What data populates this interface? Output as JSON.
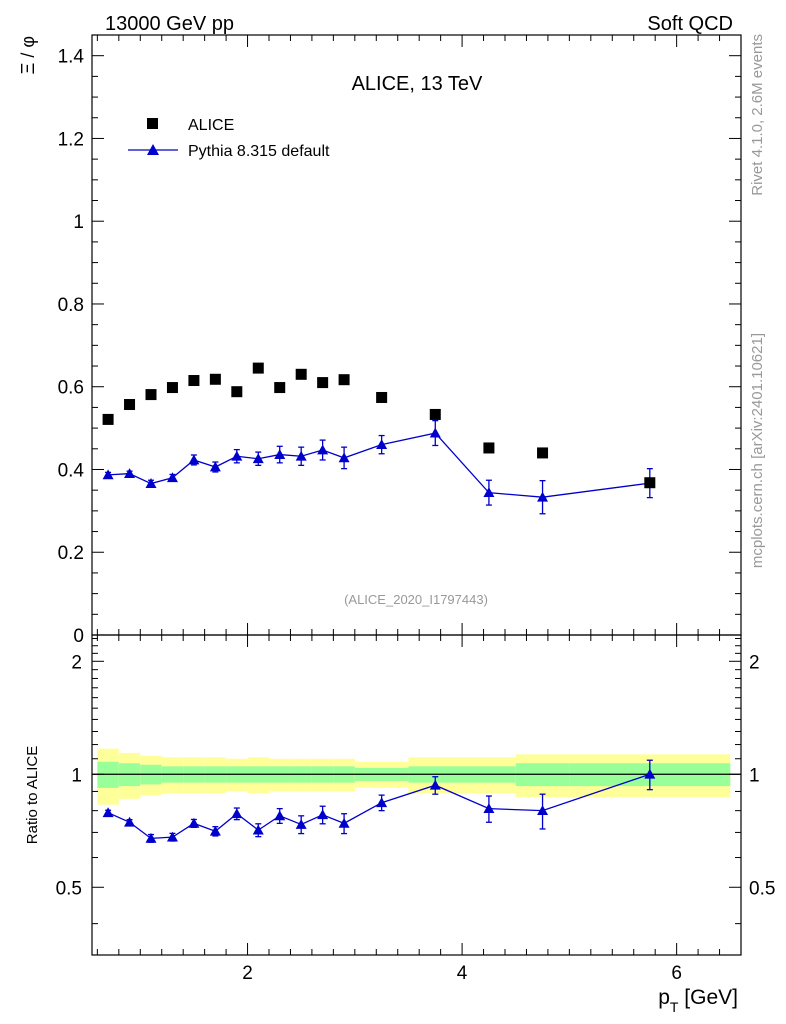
{
  "header": {
    "left_label": "13000 GeV pp",
    "right_label": "Soft QCD"
  },
  "side_labels": {
    "top": "Rivet 4.1.0,  2.6M events",
    "bottom": "mcplots.cern.ch [arXiv:2401.10621]"
  },
  "colors": {
    "data": "#000000",
    "mc": "#0000cc",
    "band_inner": "#99ff99",
    "band_outer": "#ffff99",
    "watermark": "#999999"
  },
  "chart_data": [
    {
      "type": "scatter",
      "title": "ALICE, 13 TeV",
      "ylabel": "Ξ / φ",
      "xlabel": "",
      "xlim": [
        0.55,
        6.6
      ],
      "ylim": [
        0,
        1.45
      ],
      "y_ticks": [
        0,
        0.2,
        0.4,
        0.6,
        0.8,
        1,
        1.2,
        1.4
      ],
      "y_tick_labels": [
        "0",
        "0.2",
        "0.4",
        "0.6",
        "0.8",
        "1",
        "1.2",
        "1.4"
      ],
      "x_ticks": [
        2,
        4,
        6
      ],
      "watermark": "(ALICE_2020_I1797443)",
      "legend": {
        "position": "top-left",
        "entries": [
          {
            "name": "ALICE",
            "marker": "square"
          },
          {
            "name": "Pythia 8.315 default",
            "marker": "triangle-line"
          }
        ]
      },
      "series": [
        {
          "name": "ALICE",
          "x": [
            0.7,
            0.9,
            1.1,
            1.3,
            1.5,
            1.7,
            1.9,
            2.1,
            2.3,
            2.5,
            2.7,
            2.9,
            3.25,
            3.75,
            4.25,
            4.75,
            5.75
          ],
          "y": [
            0.521,
            0.557,
            0.581,
            0.598,
            0.615,
            0.618,
            0.588,
            0.645,
            0.598,
            0.63,
            0.61,
            0.617,
            0.574,
            0.533,
            0.452,
            0.44,
            0.368
          ]
        },
        {
          "name": "Pythia 8.315 default",
          "x": [
            0.7,
            0.9,
            1.1,
            1.3,
            1.5,
            1.7,
            1.9,
            2.1,
            2.3,
            2.5,
            2.7,
            2.9,
            3.25,
            3.75,
            4.25,
            4.75,
            5.75
          ],
          "y": [
            0.387,
            0.39,
            0.366,
            0.38,
            0.423,
            0.406,
            0.432,
            0.426,
            0.436,
            0.432,
            0.447,
            0.428,
            0.46,
            0.488,
            0.344,
            0.333,
            0.367
          ],
          "yerr": [
            0.006,
            0.006,
            0.008,
            0.008,
            0.012,
            0.012,
            0.016,
            0.016,
            0.02,
            0.022,
            0.024,
            0.026,
            0.022,
            0.03,
            0.03,
            0.04,
            0.035
          ]
        }
      ]
    },
    {
      "type": "line",
      "title": "",
      "ylabel": "Ratio to ALICE",
      "xlabel": "p_T [GeV]",
      "xlim": [
        0.55,
        6.6
      ],
      "ylim": [
        0.33,
        2.35
      ],
      "y_ticks": [
        0.5,
        1,
        2
      ],
      "y_tick_labels": [
        "0.5",
        "1",
        "2"
      ],
      "x_ticks": [
        2,
        4,
        6
      ],
      "x_tick_labels": [
        "2",
        "4",
        "6"
      ],
      "reference_line": 1,
      "bands": [
        {
          "x0": 0.6,
          "x1": 0.8,
          "inner": [
            0.92,
            1.08
          ],
          "outer": [
            0.83,
            1.17
          ]
        },
        {
          "x0": 0.8,
          "x1": 1.0,
          "inner": [
            0.93,
            1.07
          ],
          "outer": [
            0.86,
            1.14
          ]
        },
        {
          "x0": 1.0,
          "x1": 1.2,
          "inner": [
            0.94,
            1.06
          ],
          "outer": [
            0.88,
            1.12
          ]
        },
        {
          "x0": 1.2,
          "x1": 1.4,
          "inner": [
            0.95,
            1.05
          ],
          "outer": [
            0.89,
            1.11
          ]
        },
        {
          "x0": 1.4,
          "x1": 1.6,
          "inner": [
            0.95,
            1.05
          ],
          "outer": [
            0.89,
            1.11
          ]
        },
        {
          "x0": 1.6,
          "x1": 1.8,
          "inner": [
            0.95,
            1.05
          ],
          "outer": [
            0.89,
            1.11
          ]
        },
        {
          "x0": 1.8,
          "x1": 2.0,
          "inner": [
            0.95,
            1.05
          ],
          "outer": [
            0.9,
            1.1
          ]
        },
        {
          "x0": 2.0,
          "x1": 2.2,
          "inner": [
            0.95,
            1.05
          ],
          "outer": [
            0.89,
            1.11
          ]
        },
        {
          "x0": 2.2,
          "x1": 2.4,
          "inner": [
            0.95,
            1.05
          ],
          "outer": [
            0.9,
            1.1
          ]
        },
        {
          "x0": 2.4,
          "x1": 2.6,
          "inner": [
            0.95,
            1.05
          ],
          "outer": [
            0.9,
            1.1
          ]
        },
        {
          "x0": 2.6,
          "x1": 2.8,
          "inner": [
            0.95,
            1.05
          ],
          "outer": [
            0.9,
            1.1
          ]
        },
        {
          "x0": 2.8,
          "x1": 3.0,
          "inner": [
            0.95,
            1.05
          ],
          "outer": [
            0.9,
            1.1
          ]
        },
        {
          "x0": 3.0,
          "x1": 3.5,
          "inner": [
            0.96,
            1.04
          ],
          "outer": [
            0.92,
            1.08
          ]
        },
        {
          "x0": 3.5,
          "x1": 4.5,
          "inner": [
            0.95,
            1.05
          ],
          "outer": [
            0.89,
            1.11
          ]
        },
        {
          "x0": 4.5,
          "x1": 5.0,
          "inner": [
            0.93,
            1.07
          ],
          "outer": [
            0.87,
            1.13
          ]
        },
        {
          "x0": 5.0,
          "x1": 6.5,
          "inner": [
            0.93,
            1.07
          ],
          "outer": [
            0.87,
            1.13
          ]
        }
      ],
      "series": [
        {
          "name": "Pythia 8.315 default / ALICE",
          "x": [
            0.7,
            0.9,
            1.1,
            1.3,
            1.5,
            1.7,
            1.9,
            2.1,
            2.3,
            2.5,
            2.7,
            2.9,
            3.25,
            3.75,
            4.25,
            4.75,
            5.75
          ],
          "y": [
            0.79,
            0.745,
            0.675,
            0.68,
            0.74,
            0.705,
            0.785,
            0.71,
            0.775,
            0.735,
            0.78,
            0.74,
            0.84,
            0.935,
            0.81,
            0.8,
            1.0
          ],
          "yerr": [
            0.012,
            0.012,
            0.016,
            0.016,
            0.018,
            0.02,
            0.028,
            0.028,
            0.035,
            0.04,
            0.042,
            0.045,
            0.04,
            0.05,
            0.065,
            0.085,
            0.09
          ]
        }
      ]
    }
  ]
}
